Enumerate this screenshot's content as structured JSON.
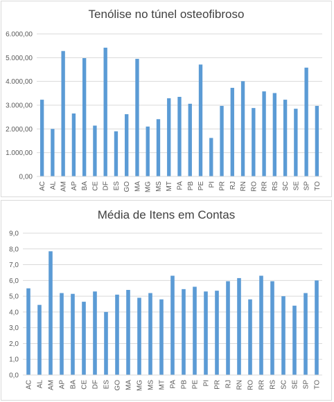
{
  "chart_data": [
    {
      "type": "bar",
      "title": "Tenólise no túnel osteofibroso",
      "categories": [
        "AC",
        "AL",
        "AM",
        "AP",
        "BA",
        "CE",
        "DF",
        "ES",
        "GO",
        "MA",
        "MG",
        "MS",
        "MT",
        "PA",
        "PB",
        "PE",
        "PI",
        "PR",
        "RJ",
        "RN",
        "RO",
        "RR",
        "RS",
        "SC",
        "SE",
        "SP",
        "TO"
      ],
      "values": [
        3230,
        2000,
        5280,
        2650,
        4980,
        2140,
        5420,
        1900,
        2620,
        4950,
        2100,
        2410,
        3290,
        3350,
        3060,
        4710,
        1620,
        2970,
        3730,
        4010,
        2880,
        3580,
        3510,
        3230,
        2850,
        4580,
        2970
      ],
      "ylim": [
        0,
        6000
      ],
      "yticks": [
        0,
        1000,
        2000,
        3000,
        4000,
        5000,
        6000
      ],
      "ytick_labels": [
        "0,00",
        "1.000,00",
        "2.000,00",
        "3.000,00",
        "4.000,00",
        "5.000,00",
        "6.000,00"
      ],
      "grid": true,
      "color": "#5b9bd5"
    },
    {
      "type": "bar",
      "title": "Média de Itens em Contas",
      "categories": [
        "AC",
        "AL",
        "AM",
        "AP",
        "BA",
        "CE",
        "DF",
        "ES",
        "GO",
        "MA",
        "MG",
        "MS",
        "MT",
        "PA",
        "PB",
        "PE",
        "PI",
        "PR",
        "RJ",
        "RN",
        "RO",
        "RR",
        "RS",
        "SC",
        "SE",
        "SP",
        "TO"
      ],
      "values": [
        5.5,
        4.45,
        7.85,
        5.2,
        5.15,
        4.65,
        5.3,
        4.0,
        5.1,
        5.4,
        4.9,
        5.2,
        4.8,
        6.3,
        5.45,
        5.6,
        5.3,
        5.35,
        5.95,
        6.15,
        4.8,
        6.3,
        5.95,
        5.0,
        4.4,
        5.2,
        6.0
      ],
      "ylim": [
        0,
        9
      ],
      "yticks": [
        0,
        1,
        2,
        3,
        4,
        5,
        6,
        7,
        8,
        9
      ],
      "ytick_labels": [
        "0,0",
        "1,0",
        "2,0",
        "3,0",
        "4,0",
        "5,0",
        "6,0",
        "7,0",
        "8,0",
        "9,0"
      ],
      "grid": true,
      "color": "#5b9bd5"
    }
  ]
}
